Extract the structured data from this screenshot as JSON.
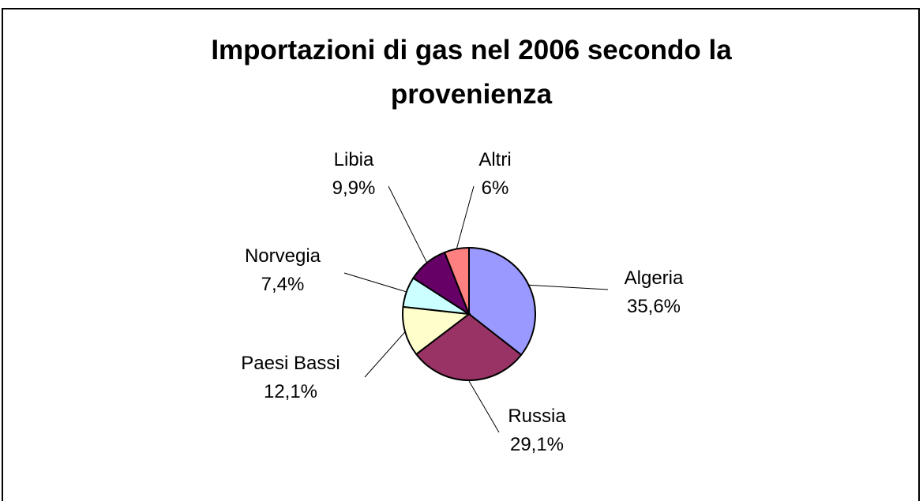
{
  "chart_data": {
    "type": "pie",
    "title": "Importazioni di gas nel 2006 secondo la provenienza",
    "categories": [
      "Algeria",
      "Russia",
      "Paesi Bassi",
      "Norvegia",
      "Libia",
      "Altri"
    ],
    "values": [
      35.6,
      29.1,
      12.1,
      7.4,
      9.9,
      6
    ],
    "value_labels": [
      "35,6%",
      "29,1%",
      "12,1%",
      "7,4%",
      "9,9%",
      "6%"
    ],
    "colors": [
      "#9999ff",
      "#993366",
      "#ffffcc",
      "#ccffff",
      "#660066",
      "#ff8080"
    ]
  }
}
